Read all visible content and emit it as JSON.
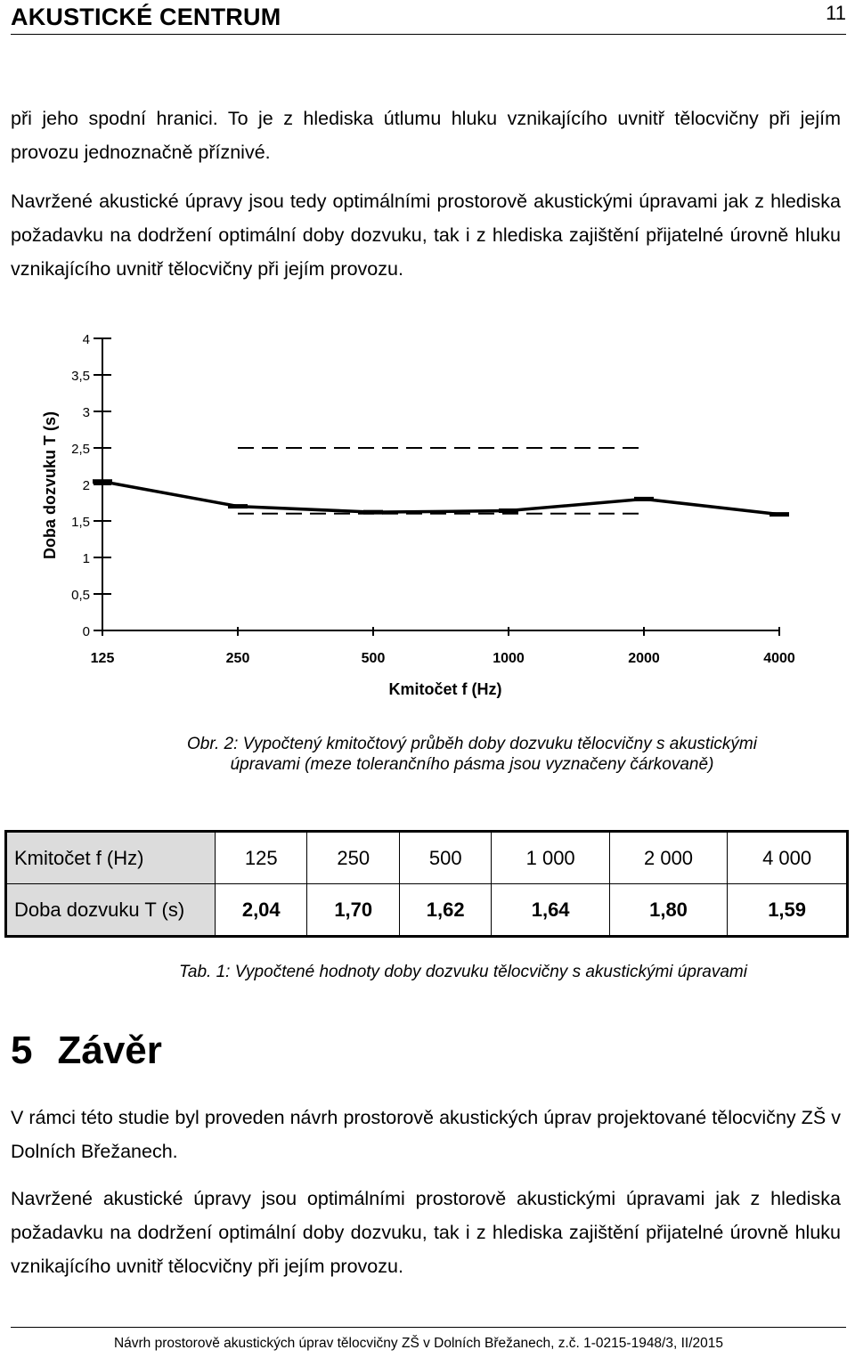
{
  "header": {
    "title": "AKUSTICKÉ CENTRUM",
    "page_number": "11"
  },
  "paragraphs": {
    "p1": "při jeho spodní hranici. To je z hlediska útlumu hluku vznikajícího uvnitř tělocvičny při jejím provozu jednoznačně příznivé.",
    "p2": "Navržené akustické úpravy jsou tedy optimálními prostorově akustickými úpravami jak z hlediska požadavku na dodržení optimální doby dozvuku, tak i z hlediska zajištění přijatelné úrovně hluku vznikajícího uvnitř tělocvičny při jejím provozu."
  },
  "chart_data": {
    "type": "line",
    "xlabel": "Kmitočet  f (Hz)",
    "ylabel": "Doba dozvuku T (s)",
    "categories": [
      "125",
      "250",
      "500",
      "1000",
      "2000",
      "4000"
    ],
    "y_ticks": [
      "0",
      "0,5",
      "1",
      "1,5",
      "2",
      "2,5",
      "3",
      "3,5",
      "4"
    ],
    "ylim": [
      0,
      4
    ],
    "series": [
      {
        "values": [
          2.04,
          1.7,
          1.62,
          1.64,
          1.8,
          1.59
        ],
        "style": "solid",
        "color": "#000000"
      }
    ],
    "tolerance_band": {
      "style": "dashed",
      "from_category": "250",
      "to_category": "2000",
      "upper": 2.5,
      "lower": 1.6
    },
    "grid": false,
    "legend": "none"
  },
  "figure_caption": "Obr. 2: Vypočtený kmitočtový průběh doby dozvuku tělocvičny s akustickými úpravami (meze tolerančního pásma jsou vyznačeny čárkovaně)",
  "table": {
    "rows": [
      {
        "label": "Kmitočet  f (Hz)",
        "cells": [
          "125",
          "250",
          "500",
          "1 000",
          "2 000",
          "4 000"
        ]
      },
      {
        "label": "Doba dozvuku  T (s)",
        "cells": [
          "2,04",
          "1,70",
          "1,62",
          "1,64",
          "1,80",
          "1,59"
        ]
      }
    ]
  },
  "table_caption": "Tab. 1: Vypočtené hodnoty doby dozvuku tělocvičny s akustickými úpravami",
  "section": {
    "number": "5",
    "title": "Závěr",
    "p1": "V rámci této studie byl proveden návrh prostorově akustických úprav projektované tělocvičny ZŠ v Dolních Břežanech.",
    "p2": "Navržené akustické úpravy jsou optimálními prostorově akustickými úpravami jak z hlediska požadavku na dodržení optimální doby dozvuku, tak i z hlediska zajištění přijatelné úrovně hluku vznikajícího uvnitř tělocvičny při jejím provozu."
  },
  "footer": {
    "text": "Návrh prostorově akustických úprav tělocvičny ZŠ v Dolních Břežanech, z.č. 1-0215-1948/3, II/2015"
  }
}
